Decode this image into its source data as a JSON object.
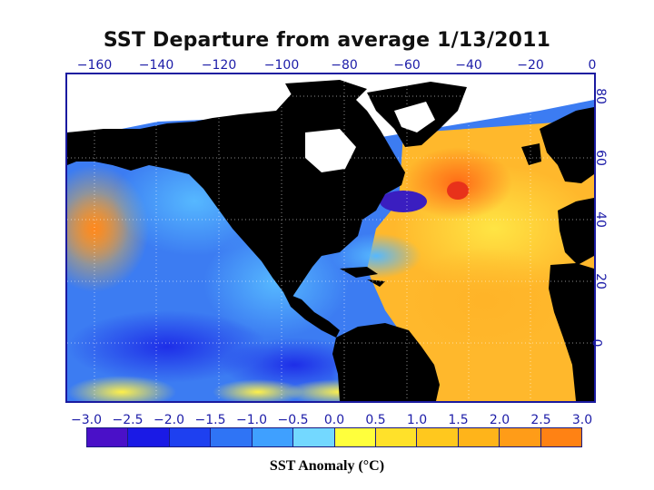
{
  "title": "SST Departure from average 1/13/2011",
  "longitude_labels": [
    "−160",
    "−140",
    "−120",
    "−100",
    "−80",
    "−60",
    "−40",
    "−20",
    "0"
  ],
  "latitude_labels": [
    "80",
    "60",
    "40",
    "20",
    "0"
  ],
  "colorbar": {
    "tick_labels": [
      "−3.0",
      "−2.5",
      "−2.0",
      "−1.5",
      "−1.0",
      "−0.5",
      "0.0",
      "0.5",
      "1.0",
      "1.5",
      "2.0",
      "2.5",
      "3.0"
    ],
    "colors": [
      "#4a10c8",
      "#1a1ae6",
      "#1e40f0",
      "#2f74f5",
      "#3fa0ff",
      "#73d8ff",
      "#ffff3c",
      "#ffe12a",
      "#ffc81e",
      "#ffb41a",
      "#ff9c18",
      "#ff8214"
    ],
    "unit_label": "SST Anomaly (°C)"
  },
  "map": {
    "ocean_anomaly_colors": {
      "cold": "#3c6cf0",
      "cool": "#56b8ff",
      "neutral": "#ffee50",
      "warm": "#ffb428",
      "hot": "#ff6a16"
    },
    "land_color": "#000000",
    "ice_color": "#ffffff",
    "frame_color": "#1a1aa0"
  }
}
